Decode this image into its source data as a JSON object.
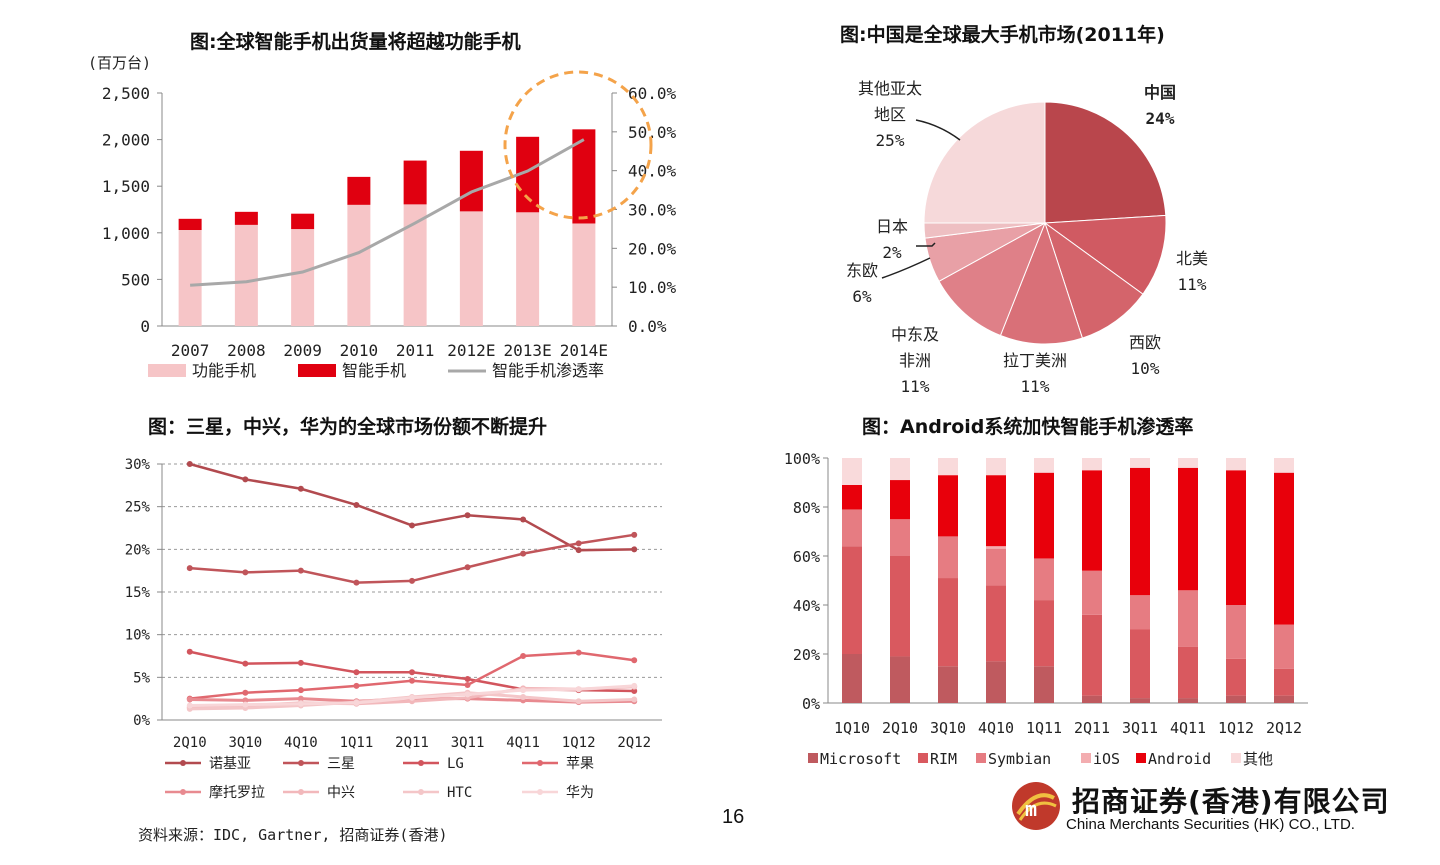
{
  "page_number": "16",
  "source_note": "资料来源：IDC, Gartner, 招商证券(香港)",
  "logo": {
    "name_cn": "招商证券(香港)有限公司",
    "name_en": "China Merchants Securities (HK) CO., LTD."
  },
  "colors": {
    "dark_red": "#b24a4f",
    "red": "#e8000b",
    "light_pink": "#f4b6b9",
    "grey_line": "#a0a0a0"
  },
  "chart_data": [
    {
      "type": "bar",
      "id": "shipments",
      "title": "图:全球智能手机出货量将超越功能手机",
      "unit_label": "(百万台)",
      "categories": [
        "2007",
        "2008",
        "2009",
        "2010",
        "2011",
        "2012E",
        "2013E",
        "2014E"
      ],
      "series": [
        {
          "name": "功能手机",
          "values": [
            1030,
            1085,
            1040,
            1300,
            1305,
            1230,
            1220,
            1100
          ]
        },
        {
          "name": "智能手机",
          "values": [
            120,
            140,
            165,
            300,
            470,
            650,
            810,
            1010
          ]
        },
        {
          "name": "智能手机渗透率",
          "axis": "right",
          "values": [
            10.5,
            11.4,
            13.9,
            18.9,
            26.5,
            34.5,
            39.9,
            48.0
          ]
        }
      ],
      "y_left": {
        "min": 0,
        "max": 2500,
        "ticks": [
          "0",
          "500",
          "1,000",
          "1,500",
          "2,000",
          "2,500"
        ]
      },
      "y_right": {
        "min": 0,
        "max": 60,
        "ticks": [
          "0.0%",
          "10.0%",
          "20.0%",
          "30.0%",
          "40.0%",
          "50.0%",
          "60.0%"
        ]
      },
      "legend_position": "bottom"
    },
    {
      "type": "pie",
      "id": "market_share_2011",
      "title": "图:中国是全球最大手机市场(2011年)",
      "slices": [
        {
          "label": "中国",
          "value": 24,
          "pct": "24%"
        },
        {
          "label": "北美",
          "value": 11,
          "pct": "11%"
        },
        {
          "label": "西欧",
          "value": 10,
          "pct": "10%"
        },
        {
          "label": "拉丁美洲",
          "value": 11,
          "pct": "11%"
        },
        {
          "label": "中东及非洲",
          "value": 11,
          "pct": "11%"
        },
        {
          "label": "东欧",
          "value": 6,
          "pct": "6%"
        },
        {
          "label": "日本",
          "value": 2,
          "pct": "2%"
        },
        {
          "label": "其他亚太地区",
          "value": 25,
          "pct": "25%"
        }
      ]
    },
    {
      "type": "line",
      "id": "vendor_share",
      "title": "图：三星，中兴，华为的全球市场份额不断提升",
      "categories": [
        "2Q10",
        "3Q10",
        "4Q10",
        "1Q11",
        "2Q11",
        "3Q11",
        "4Q11",
        "1Q12",
        "2Q12"
      ],
      "y": {
        "min": 0,
        "max": 30,
        "ticks": [
          "0%",
          "5%",
          "10%",
          "15%",
          "20%",
          "25%",
          "30%"
        ]
      },
      "series": [
        {
          "name": "诺基亚",
          "values": [
            30.0,
            28.2,
            27.1,
            25.2,
            22.8,
            24.0,
            23.5,
            19.9,
            20.0
          ]
        },
        {
          "name": "三星",
          "values": [
            17.8,
            17.3,
            17.5,
            16.1,
            16.3,
            17.9,
            19.5,
            20.7,
            21.7
          ]
        },
        {
          "name": "LG",
          "values": [
            8.0,
            6.6,
            6.7,
            5.6,
            5.6,
            4.8,
            3.6,
            3.5,
            3.4
          ]
        },
        {
          "name": "苹果",
          "values": [
            2.5,
            3.2,
            3.5,
            4.0,
            4.6,
            4.1,
            7.5,
            7.9,
            7.0
          ]
        },
        {
          "name": "摩托罗拉",
          "values": [
            2.4,
            2.3,
            2.5,
            2.2,
            2.5,
            2.5,
            2.3,
            2.1,
            2.2
          ]
        },
        {
          "name": "中兴",
          "values": [
            1.5,
            1.7,
            2.0,
            1.9,
            2.2,
            2.6,
            3.7,
            3.6,
            3.9
          ]
        },
        {
          "name": "HTC",
          "values": [
            1.3,
            1.4,
            1.7,
            2.1,
            2.7,
            3.2,
            2.7,
            2.2,
            2.4
          ]
        },
        {
          "name": "华为",
          "values": [
            1.7,
            1.8,
            1.9,
            2.0,
            2.6,
            3.0,
            3.5,
            3.6,
            4.0
          ]
        }
      ],
      "legend_position": "bottom"
    },
    {
      "type": "bar",
      "stacked": true,
      "id": "os_share",
      "title": "图：Android系统加快智能手机渗透率",
      "categories": [
        "1Q10",
        "2Q10",
        "3Q10",
        "4Q10",
        "1Q11",
        "2Q11",
        "3Q11",
        "4Q11",
        "1Q12",
        "2Q12"
      ],
      "y": {
        "min": 0,
        "max": 100,
        "ticks": [
          "0%",
          "20%",
          "40%",
          "60%",
          "80%",
          "100%"
        ]
      },
      "series": [
        {
          "name": "Microsoft",
          "values": [
            20,
            19,
            15,
            17,
            15,
            3,
            2,
            2,
            3,
            3
          ]
        },
        {
          "name": "RIM",
          "values": [
            44,
            41,
            36,
            31,
            27,
            33,
            28,
            21,
            15,
            11
          ]
        },
        {
          "name": "Symbian",
          "values": [
            15,
            15,
            17,
            15,
            17,
            18,
            14,
            23,
            22,
            18
          ]
        },
        {
          "name": "iOS",
          "values": [
            0,
            0,
            0,
            1,
            0,
            0,
            0,
            0,
            0,
            0
          ]
        },
        {
          "name": "Android",
          "values": [
            10,
            16,
            25,
            29,
            35,
            41,
            52,
            50,
            55,
            62
          ]
        },
        {
          "name": "其他",
          "values": [
            11,
            9,
            7,
            7,
            6,
            5,
            4,
            4,
            5,
            6
          ]
        }
      ],
      "legend_position": "bottom"
    }
  ]
}
